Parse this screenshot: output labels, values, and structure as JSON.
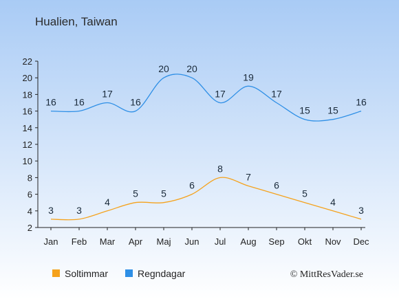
{
  "title": "Hualien, Taiwan",
  "credit": "© MittResVader.se",
  "colors": {
    "background_top": "#a9cbf5",
    "background_bottom": "#ffffff",
    "sun": "#f5a21c",
    "rain": "#2e8fe6",
    "axis": "#222222"
  },
  "chart_data": {
    "type": "line",
    "categories": [
      "Jan",
      "Feb",
      "Mar",
      "Apr",
      "Maj",
      "Jun",
      "Jul",
      "Aug",
      "Sep",
      "Okt",
      "Nov",
      "Dec"
    ],
    "series": [
      {
        "name": "Soltimmar",
        "values": [
          3,
          3,
          4,
          5,
          5,
          6,
          8,
          7,
          6,
          5,
          4,
          3
        ]
      },
      {
        "name": "Regndagar",
        "values": [
          16,
          16,
          17,
          16,
          20,
          20,
          17,
          19,
          17,
          15,
          15,
          16
        ]
      }
    ],
    "yticks": [
      2,
      4,
      6,
      8,
      10,
      12,
      14,
      16,
      18,
      20,
      22
    ],
    "ylim": [
      2,
      22
    ],
    "grid": false,
    "legend_position": "bottom-left"
  }
}
